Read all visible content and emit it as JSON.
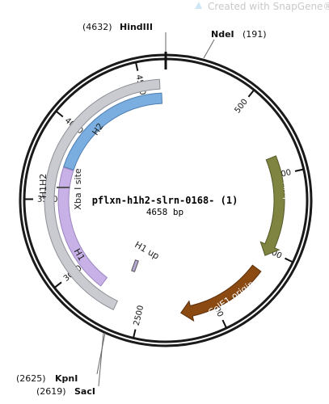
{
  "watermark": {
    "text": "Created with SnapGene®"
  },
  "plasmid": {
    "name": "pflxn-h1h2-slrn-0168- (1)",
    "length_label": "4658 bp",
    "length_bp": 4658
  },
  "ticks": [
    {
      "bp": 500,
      "label": "500"
    },
    {
      "bp": 1000,
      "label": "1000"
    },
    {
      "bp": 1500,
      "label": "1500"
    },
    {
      "bp": 2000,
      "label": "2000"
    },
    {
      "bp": 2500,
      "label": "2500"
    },
    {
      "bp": 3000,
      "label": "3000"
    },
    {
      "bp": 3500,
      "label": "3500"
    },
    {
      "bp": 4000,
      "label": "4000"
    },
    {
      "bp": 4500,
      "label": "4500"
    }
  ],
  "restriction_sites": [
    {
      "name": "HindIII",
      "position": "(4632)",
      "bp": 4632
    },
    {
      "name": "NdeI",
      "position": "(191)",
      "bp": 191
    },
    {
      "name": "KpnI",
      "position": "(2625)",
      "bp": 2625
    },
    {
      "name": "SacI",
      "position": "(2619)",
      "bp": 2619
    }
  ],
  "features": [
    {
      "name": "AmpR",
      "color": "#7f8440",
      "start": 880,
      "end": 1540,
      "direction": "forward"
    },
    {
      "name": "ColE1 origin",
      "color": "#8a4a12",
      "start": 1640,
      "end": 2230,
      "direction": "forward"
    },
    {
      "name": "H1H2",
      "color": "#c9cbd1",
      "start": 2660,
      "end": 4620,
      "direction": "none"
    },
    {
      "name": "H2",
      "color": "#7aaee0",
      "start": 3730,
      "end": 4630,
      "direction": "none"
    },
    {
      "name": "H1",
      "color": "#c7b1e6",
      "start": 2810,
      "end": 3725,
      "direction": "none"
    },
    {
      "name": "Xba I site",
      "bp": 3725
    },
    {
      "name": "H1 up",
      "bp": 2950
    }
  ],
  "colors": {
    "backbone": "#1a1a1a",
    "watermark_logo": "#cfe6f5"
  }
}
